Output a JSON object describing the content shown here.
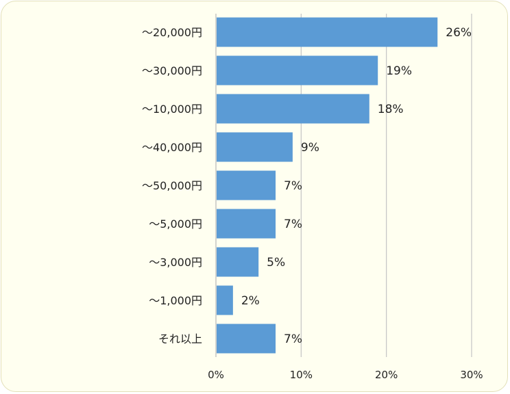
{
  "chart_data": {
    "type": "bar",
    "orientation": "horizontal",
    "categories": [
      "～20,000円",
      "～30,000円",
      "～10,000円",
      "～40,000円",
      "～50,000円",
      "～5,000円",
      "～3,000円",
      "～1,000円",
      "それ以上"
    ],
    "values": [
      26,
      19,
      18,
      9,
      7,
      7,
      5,
      2,
      7
    ],
    "value_labels": [
      "26%",
      "19%",
      "18%",
      "9%",
      "7%",
      "7%",
      "5%",
      "2%",
      "7%"
    ],
    "x_ticks": [
      "0%",
      "10%",
      "20%",
      "30%"
    ],
    "xlim": [
      0,
      30
    ],
    "grid": true,
    "bar_color": "#5b9bd5",
    "grid_color": "#c8c8c8",
    "background_color": "#fffff0"
  }
}
